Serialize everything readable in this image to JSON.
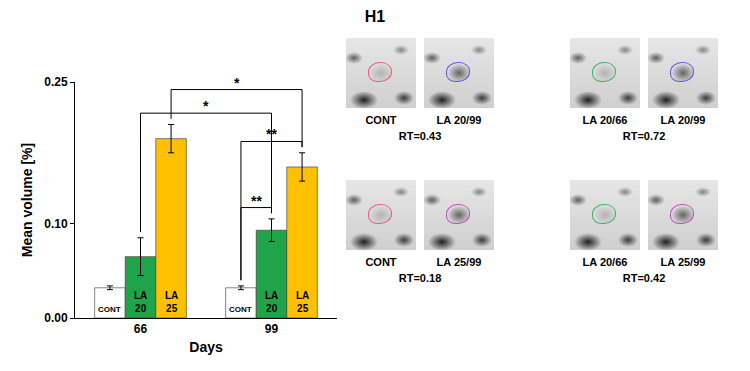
{
  "chart_data": {
    "type": "bar",
    "title": "H1",
    "x_label": "Days",
    "y_label": "Mean volume [%]",
    "categories": [
      "66",
      "99"
    ],
    "series": [
      {
        "name": "CONT",
        "color": "#ffffff",
        "values": [
          0.032,
          0.032
        ],
        "errors": [
          0.002,
          0.002
        ]
      },
      {
        "name": "LA 20",
        "color": "#1fa44a",
        "values": [
          0.065,
          0.093
        ],
        "errors": [
          0.02,
          0.012
        ]
      },
      {
        "name": "LA 25",
        "color": "#ffc000",
        "values": [
          0.19,
          0.16
        ],
        "errors": [
          0.015,
          0.015
        ]
      }
    ],
    "ylim": [
      0,
      0.25
    ],
    "yticks": [
      {
        "value": 0,
        "label": "0.00"
      },
      {
        "value": 0.1,
        "label": "0.10"
      },
      {
        "value": 0.25,
        "label": "0.25"
      }
    ],
    "grid": false,
    "annotations": [
      {
        "label": "**",
        "from": {
          "category": "99",
          "series": "CONT"
        },
        "to": {
          "category": "99",
          "series": "LA 20"
        }
      },
      {
        "label": "**",
        "from": {
          "category": "99",
          "series": "CONT"
        },
        "to": {
          "category": "99",
          "series": "LA 25"
        }
      },
      {
        "label": "*",
        "from": {
          "category": "66",
          "series": "LA 20"
        },
        "to": {
          "category": "99",
          "series": "LA 20"
        }
      },
      {
        "label": "*",
        "from": {
          "category": "66",
          "series": "LA 25"
        },
        "to": {
          "category": "99",
          "series": "LA 25"
        }
      }
    ]
  },
  "gel_panels": [
    {
      "images": [
        "CONT",
        "LA 20/99"
      ],
      "label": "RT=0.43"
    },
    {
      "images": [
        "LA 20/66",
        "LA 20/99"
      ],
      "label": "RT=0.72"
    },
    {
      "images": [
        "CONT",
        "LA 25/99"
      ],
      "label": "RT=0.18"
    },
    {
      "images": [
        "LA 20/66",
        "LA 25/99"
      ],
      "label": "RT=0.42"
    }
  ]
}
